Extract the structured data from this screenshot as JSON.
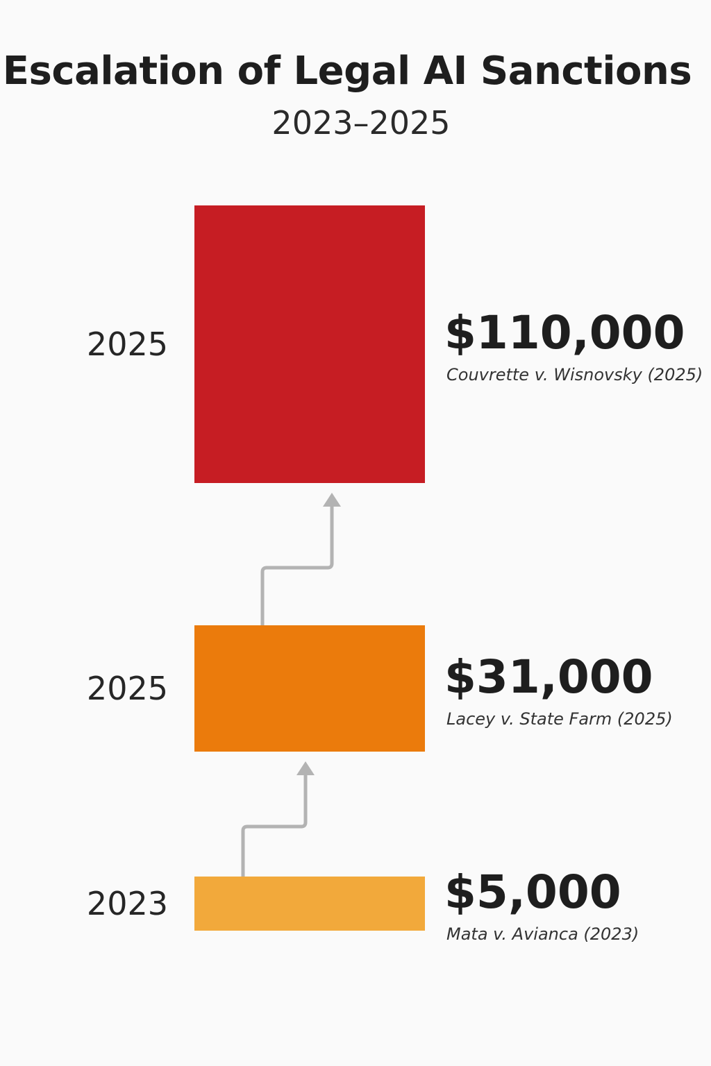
{
  "title": "Escalation of Legal AI Sanctions",
  "subtitle": "2023–2025",
  "chart_data": {
    "type": "bar",
    "orientation": "vertical-stack",
    "categories": [
      "2023",
      "2025",
      "2025"
    ],
    "values": [
      5000,
      31000,
      110000
    ],
    "value_labels": [
      "$5,000",
      "$31,000",
      "$110,000"
    ],
    "case_labels": [
      "Mata v. Avianca (2023)",
      "Lacey v. State Farm (2025)",
      "Couvrette v. Wisnovsky (2025)"
    ],
    "colors": [
      "#f2a93b",
      "#eb7b0c",
      "#c61d23"
    ],
    "title": "Escalation of Legal AI Sanctions",
    "xlabel": "",
    "ylabel": "",
    "grid": false,
    "legend": "none"
  }
}
